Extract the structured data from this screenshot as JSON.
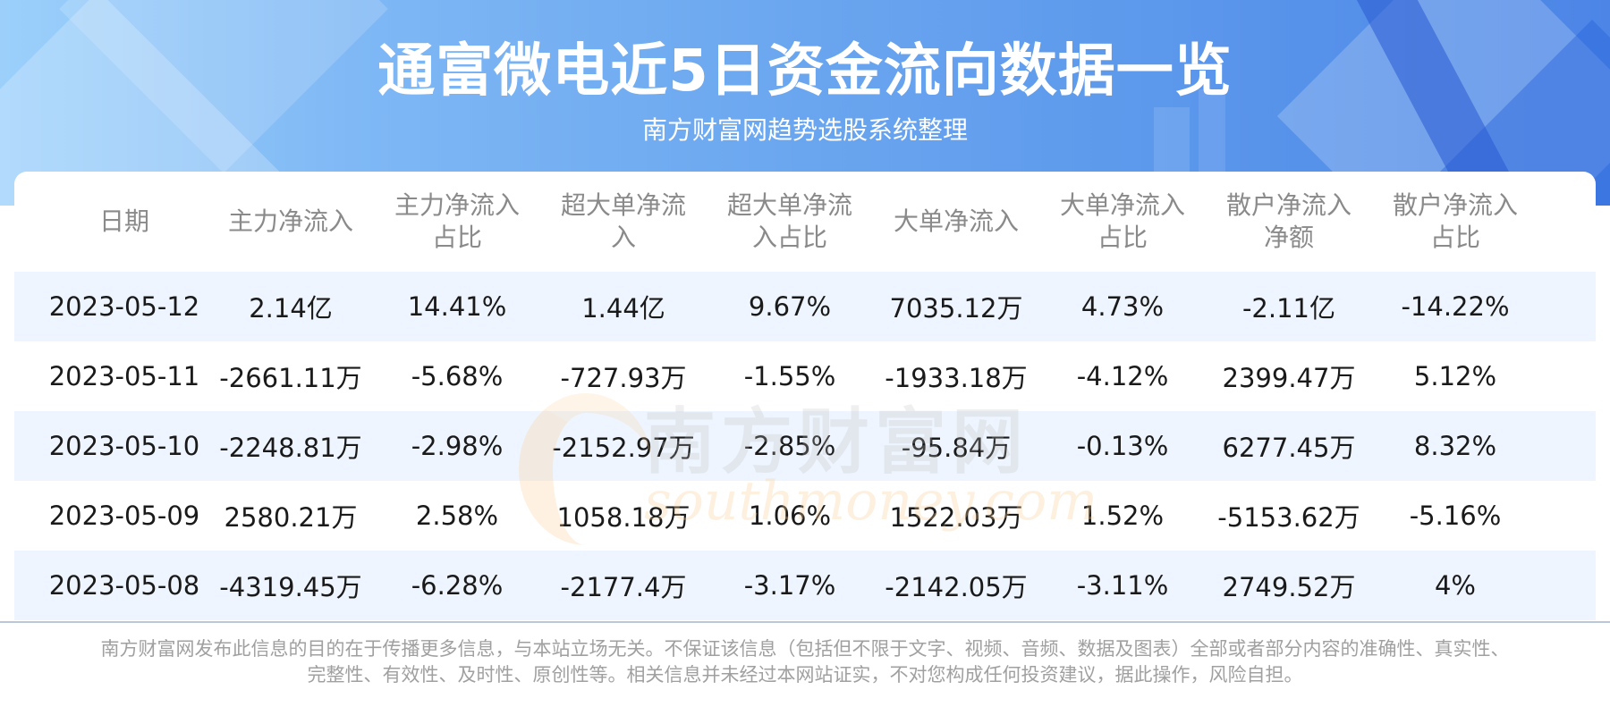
{
  "header": {
    "title": "通富微电近5日资金流向数据一览",
    "subtitle": "南方财富网趋势选股系统整理"
  },
  "watermark": {
    "cn": "南方财富网",
    "en": "southmoney.com"
  },
  "table": {
    "columns": [
      [
        "日期"
      ],
      [
        "主力净流入"
      ],
      [
        "主力净流入",
        "占比"
      ],
      [
        "超大单净流",
        "入"
      ],
      [
        "超大单净流",
        "入占比"
      ],
      [
        "大单净流入"
      ],
      [
        "大单净流入",
        "占比"
      ],
      [
        "散户净流入",
        "净额"
      ],
      [
        "散户净流入",
        "占比"
      ]
    ],
    "rows": [
      [
        "2023-05-12",
        "2.14亿",
        "14.41%",
        "1.44亿",
        "9.67%",
        "7035.12万",
        "4.73%",
        "-2.11亿",
        "-14.22%"
      ],
      [
        "2023-05-11",
        "-2661.11万",
        "-5.68%",
        "-727.93万",
        "-1.55%",
        "-1933.18万",
        "-4.12%",
        "2399.47万",
        "5.12%"
      ],
      [
        "2023-05-10",
        "-2248.81万",
        "-2.98%",
        "-2152.97万",
        "-2.85%",
        "-95.84万",
        "-0.13%",
        "6277.45万",
        "8.32%"
      ],
      [
        "2023-05-09",
        "2580.21万",
        "2.58%",
        "1058.18万",
        "1.06%",
        "1522.03万",
        "1.52%",
        "-5153.62万",
        "-5.16%"
      ],
      [
        "2023-05-08",
        "-4319.45万",
        "-6.28%",
        "-2177.4万",
        "-3.17%",
        "-2142.05万",
        "-3.11%",
        "2749.52万",
        "4%"
      ]
    ]
  },
  "footer": {
    "line1": "南方财富网发布此信息的目的在于传播更多信息，与本站立场无关。不保证该信息（包括但不限于文字、视频、音频、数据及图表）全部或者部分内容的准确性、真实性、",
    "line2": "完整性、有效性、及时性、原创性等。相关信息并未经过本网站证实，不对您构成任何投资建议，据此操作，风险自担。"
  },
  "colors": {
    "header_gradient_start": "#9cd0fb",
    "header_gradient_end": "#4c85e6",
    "row_alt_bg": "#eef5fe",
    "header_text": "#8a8a8a",
    "cell_text": "#1a1a1a"
  }
}
